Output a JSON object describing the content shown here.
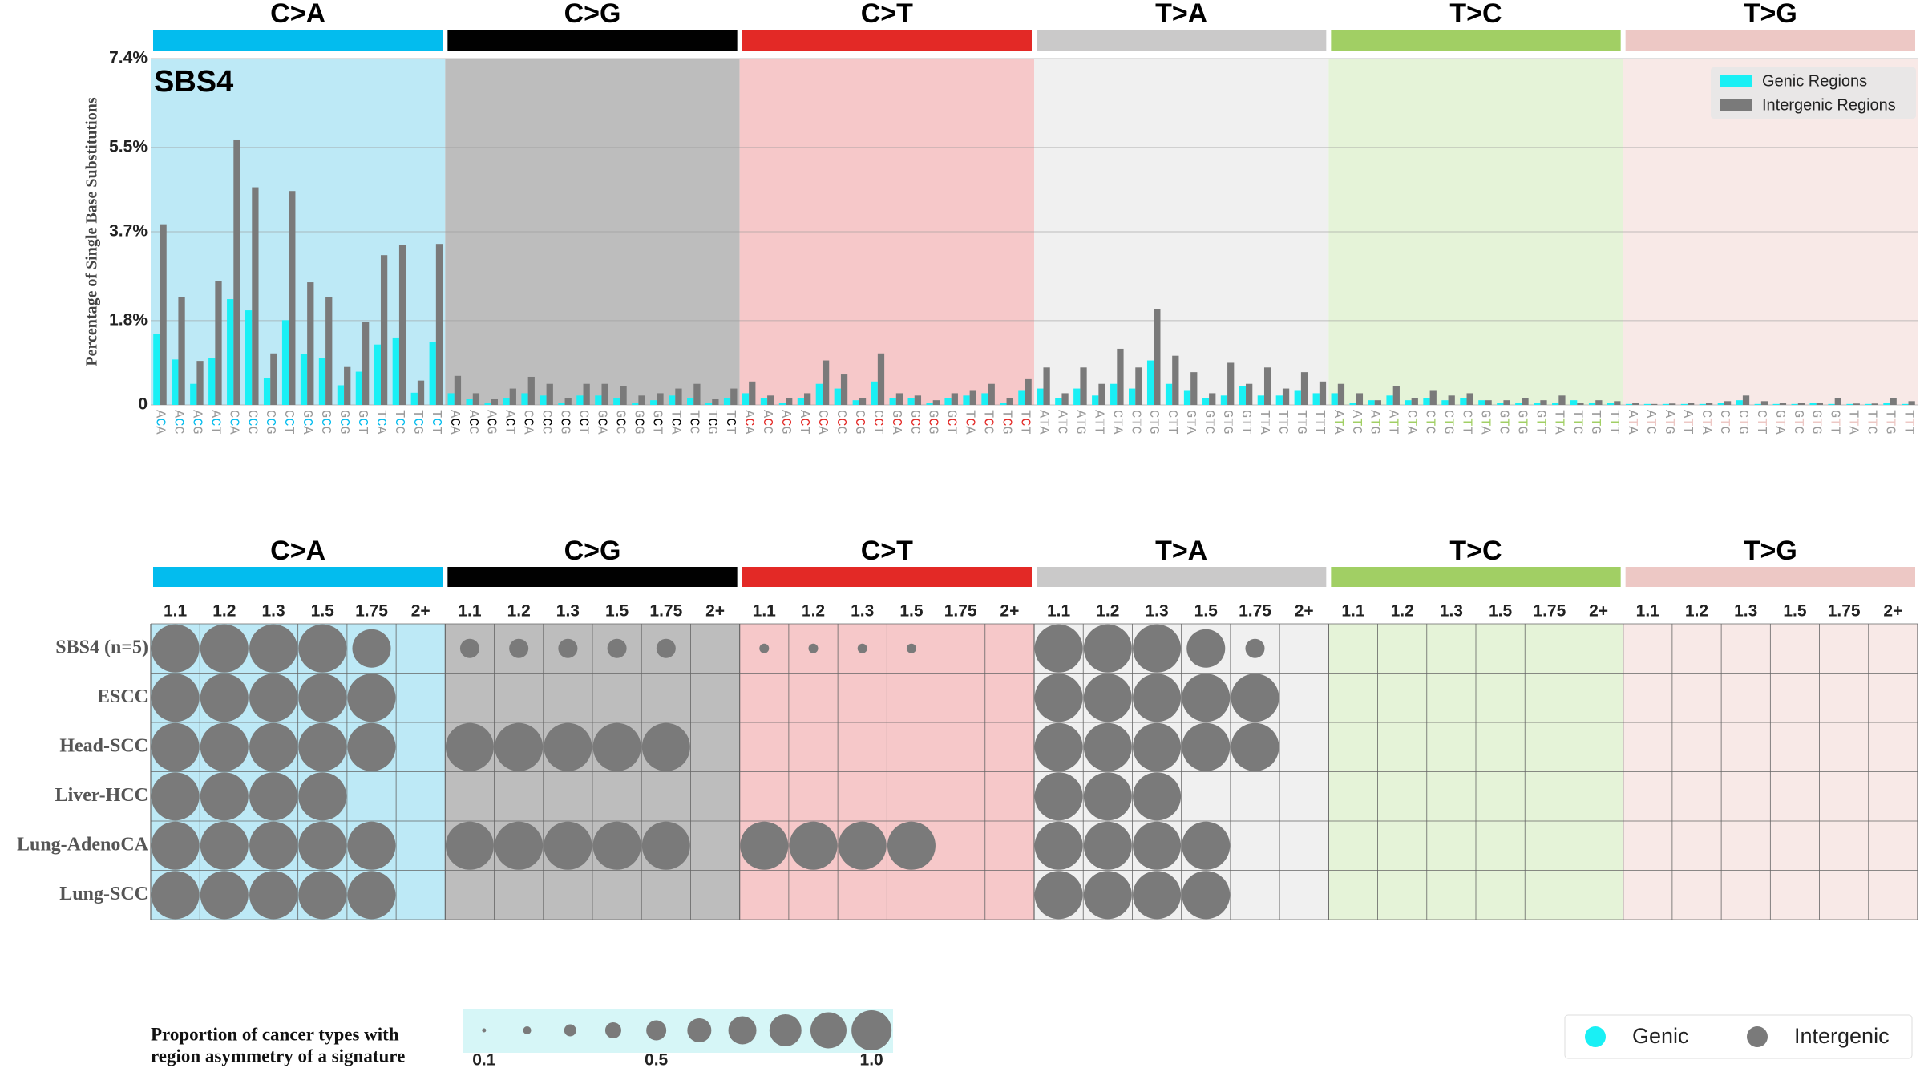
{
  "chart_data": [
    {
      "type": "bar",
      "label": "SBS4",
      "ylabel": "Percentage of Single Base Substitutions",
      "groups": [
        "C>A",
        "C>G",
        "C>T",
        "T>A",
        "T>C",
        "T>G"
      ],
      "group_colors": [
        "#03bcee",
        "#010101",
        "#e32926",
        "#cac9c9",
        "#a1cf64",
        "#edc8c5"
      ],
      "panel_colors": [
        "#bde9f6",
        "#bdbdbd",
        "#f6c8c9",
        "#f0f0f0",
        "#e5f3d8",
        "#f8e9e7"
      ],
      "categories": [
        "ACA",
        "ACC",
        "ACG",
        "ACT",
        "CCA",
        "CCC",
        "CCG",
        "CCT",
        "GCA",
        "GCC",
        "GCG",
        "GCT",
        "TCA",
        "TCC",
        "TCG",
        "TCT",
        "ACA",
        "ACC",
        "ACG",
        "ACT",
        "CCA",
        "CCC",
        "CCG",
        "CCT",
        "GCA",
        "GCC",
        "GCG",
        "GCT",
        "TCA",
        "TCC",
        "TCG",
        "TCT",
        "ACA",
        "ACC",
        "ACG",
        "ACT",
        "CCA",
        "CCC",
        "CCG",
        "CCT",
        "GCA",
        "GCC",
        "GCG",
        "GCT",
        "TCA",
        "TCC",
        "TCG",
        "TCT",
        "ATA",
        "ATC",
        "ATG",
        "ATT",
        "CTA",
        "CTC",
        "CTG",
        "CTT",
        "GTA",
        "GTC",
        "GTG",
        "GTT",
        "TTA",
        "TTC",
        "TTG",
        "TTT",
        "ATA",
        "ATC",
        "ATG",
        "ATT",
        "CTA",
        "CTC",
        "CTG",
        "CTT",
        "GTA",
        "GTC",
        "GTG",
        "GTT",
        "TTA",
        "TTC",
        "TTG",
        "TTT",
        "ATA",
        "ATC",
        "ATG",
        "ATT",
        "CTA",
        "CTC",
        "CTG",
        "CTT",
        "GTA",
        "GTC",
        "GTG",
        "GTT",
        "TTA",
        "TTC",
        "TTG",
        "TTT"
      ],
      "series": [
        {
          "name": "Genic Regions",
          "color": "#19f0f5",
          "values": [
            1.52,
            0.97,
            0.45,
            1.0,
            2.26,
            2.02,
            0.58,
            1.81,
            1.08,
            1.0,
            0.42,
            0.71,
            1.29,
            1.44,
            0.26,
            1.34,
            0.25,
            0.12,
            0.05,
            0.15,
            0.25,
            0.2,
            0.05,
            0.2,
            0.2,
            0.15,
            0.05,
            0.1,
            0.2,
            0.15,
            0.05,
            0.15,
            0.25,
            0.15,
            0.05,
            0.15,
            0.45,
            0.35,
            0.1,
            0.5,
            0.15,
            0.15,
            0.05,
            0.15,
            0.2,
            0.25,
            0.05,
            0.3,
            0.35,
            0.15,
            0.35,
            0.2,
            0.45,
            0.35,
            0.95,
            0.45,
            0.3,
            0.15,
            0.2,
            0.4,
            0.2,
            0.2,
            0.3,
            0.25,
            0.25,
            0.05,
            0.1,
            0.2,
            0.1,
            0.15,
            0.1,
            0.15,
            0.1,
            0.05,
            0.05,
            0.05,
            0.05,
            0.1,
            0.05,
            0.05,
            0.02,
            0.02,
            0.02,
            0.02,
            0.02,
            0.05,
            0.1,
            0.02,
            0.02,
            0.02,
            0.05,
            0.02,
            0.02,
            0.02,
            0.05,
            0.02
          ]
        },
        {
          "name": "Intergenic Regions",
          "color": "#7a7a7a",
          "values": [
            3.86,
            2.31,
            0.94,
            2.65,
            5.67,
            4.65,
            1.1,
            4.57,
            2.62,
            2.31,
            0.81,
            1.78,
            3.2,
            3.41,
            0.52,
            3.44,
            0.62,
            0.25,
            0.12,
            0.35,
            0.6,
            0.45,
            0.15,
            0.45,
            0.45,
            0.4,
            0.2,
            0.25,
            0.35,
            0.45,
            0.12,
            0.35,
            0.5,
            0.2,
            0.15,
            0.25,
            0.95,
            0.65,
            0.15,
            1.1,
            0.25,
            0.2,
            0.1,
            0.25,
            0.3,
            0.45,
            0.15,
            0.55,
            0.8,
            0.25,
            0.8,
            0.45,
            1.2,
            0.8,
            2.05,
            1.05,
            0.7,
            0.25,
            0.9,
            0.45,
            0.8,
            0.35,
            0.7,
            0.5,
            0.45,
            0.25,
            0.1,
            0.4,
            0.15,
            0.3,
            0.2,
            0.25,
            0.1,
            0.1,
            0.15,
            0.1,
            0.2,
            0.05,
            0.1,
            0.08,
            0.05,
            0.02,
            0.03,
            0.05,
            0.05,
            0.08,
            0.2,
            0.08,
            0.05,
            0.05,
            0.05,
            0.15,
            0.03,
            0.03,
            0.15,
            0.08
          ]
        }
      ],
      "ylim": [
        0,
        7.4
      ],
      "yticks": [
        0,
        {
          "value": 1.8,
          "label": "1.8%"
        },
        {
          "value": 3.7,
          "label": "3.7%"
        },
        {
          "value": 5.5,
          "label": "5.5%"
        },
        {
          "value": 7.4,
          "label": "7.4%"
        }
      ],
      "grid": true,
      "legend": "upper right"
    },
    {
      "type": "bubble-grid",
      "groups": [
        "C>A",
        "C>G",
        "C>T",
        "T>A",
        "T>C",
        "T>G"
      ],
      "group_colors": [
        "#03bcee",
        "#010101",
        "#e32926",
        "#cac9c9",
        "#a1cf64",
        "#edc8c5"
      ],
      "panel_colors": [
        "#bde9f6",
        "#bdbdbd",
        "#f6c8c9",
        "#f0f0f0",
        "#e5f3d8",
        "#f8e9e7"
      ],
      "columns": [
        1.1,
        1.2,
        1.3,
        1.5,
        1.75,
        "2+"
      ],
      "rows": [
        "SBS4 (n=5)",
        "ESCC",
        "Head-SCC",
        "Liver-HCC",
        "Lung-AdenoCA",
        "Lung-SCC"
      ],
      "color": "#7a7a7a",
      "values": [
        [
          1,
          1,
          1,
          1,
          0.8,
          null,
          0.4,
          0.4,
          0.4,
          0.4,
          0.4,
          null,
          0.2,
          0.2,
          0.2,
          0.2,
          null,
          null,
          1,
          1,
          1,
          0.8,
          0.4,
          null,
          null,
          null,
          null,
          null,
          null,
          null,
          null,
          null,
          null,
          null,
          null,
          null
        ],
        [
          1,
          1,
          1,
          1,
          1,
          null,
          null,
          null,
          null,
          null,
          null,
          null,
          null,
          null,
          null,
          null,
          null,
          null,
          1,
          1,
          1,
          1,
          1,
          null,
          null,
          null,
          null,
          null,
          null,
          null,
          null,
          null,
          null,
          null,
          null,
          null
        ],
        [
          1,
          1,
          1,
          1,
          1,
          null,
          1,
          1,
          1,
          1,
          1,
          null,
          null,
          null,
          null,
          null,
          null,
          null,
          1,
          1,
          1,
          1,
          1,
          null,
          null,
          null,
          null,
          null,
          null,
          null,
          null,
          null,
          null,
          null,
          null,
          null
        ],
        [
          1,
          1,
          1,
          1,
          null,
          null,
          null,
          null,
          null,
          null,
          null,
          null,
          null,
          null,
          null,
          null,
          null,
          null,
          1,
          1,
          1,
          null,
          null,
          null,
          null,
          null,
          null,
          null,
          null,
          null,
          null,
          null,
          null,
          null,
          null,
          null
        ],
        [
          1,
          1,
          1,
          1,
          1,
          null,
          1,
          1,
          1,
          1,
          1,
          null,
          1,
          1,
          1,
          1,
          null,
          null,
          1,
          1,
          1,
          1,
          null,
          null,
          null,
          null,
          null,
          null,
          null,
          null,
          null,
          null,
          null,
          null,
          null,
          null
        ],
        [
          1,
          1,
          1,
          1,
          1,
          null,
          null,
          null,
          null,
          null,
          null,
          null,
          null,
          null,
          null,
          null,
          null,
          null,
          1,
          1,
          1,
          1,
          null,
          null,
          null,
          null,
          null,
          null,
          null,
          null,
          null,
          null,
          null,
          null,
          null,
          null
        ]
      ],
      "size_legend": {
        "title": [
          "Proportion of cancer types with",
          "region asymmetry of a signature"
        ],
        "sizes": [
          0.1,
          0.2,
          0.3,
          0.4,
          0.5,
          0.6,
          0.7,
          0.8,
          0.9,
          1.0
        ],
        "ticks": [
          0.1,
          0.5,
          {
            "value": 1,
            "label": "1.0"
          }
        ]
      },
      "color_legend": [
        {
          "name": "Genic",
          "color": "#19f0f5"
        },
        {
          "name": "Intergenic",
          "color": "#7a7a7a"
        }
      ]
    }
  ]
}
